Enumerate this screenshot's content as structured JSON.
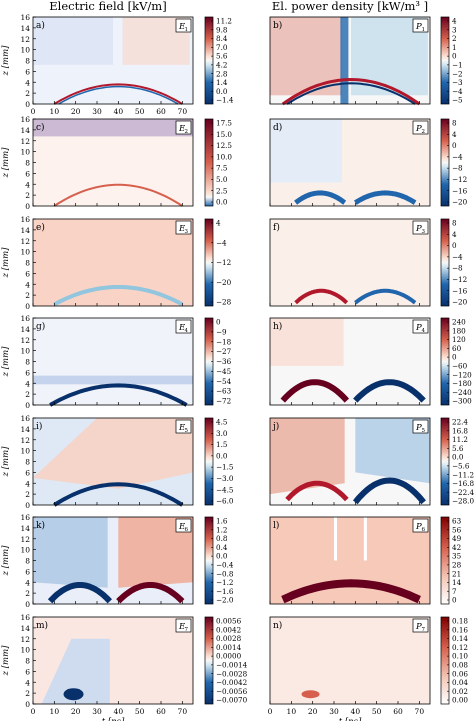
{
  "column_titles": {
    "left": "Electric field [kV/m]",
    "right": "El. power density [kW/m³ ]"
  },
  "colors": {
    "neg_dark": "#08306b",
    "neg_mid": "#2166ac",
    "neg_light": "#92c5de",
    "zero": "#f7f7f7",
    "pos_light": "#f4a582",
    "pos_mid": "#d6604d",
    "pos_dark": "#67001f",
    "seq_light": "#ffffff",
    "seq_mid": "#e0a090",
    "seq_dark": "#7f0000"
  },
  "chart_data": [
    {
      "type": "heatmap",
      "panel_label": "a)",
      "tag": "E1",
      "ylabel": "z [mm]",
      "ylim": [
        0,
        16
      ],
      "xlim": [
        0,
        75
      ],
      "x_ticks": [
        "0",
        "10",
        "20",
        "30",
        "40",
        "50",
        "60",
        "70"
      ],
      "y_ticks": [
        "0",
        "2",
        "4",
        "6",
        "8",
        "10",
        "12",
        "14",
        "16"
      ],
      "colorbar_ticks": [
        "11.2",
        "9.8",
        "8.4",
        "7.0",
        "5.6",
        "4.2",
        "2.8",
        "1.4",
        "0.0",
        "−1.4"
      ],
      "colormap": "diverging"
    },
    {
      "type": "heatmap",
      "panel_label": "b)",
      "tag": "P1",
      "xlim": [
        0,
        75
      ],
      "ylim": [
        0,
        16
      ],
      "colorbar_ticks": [
        "4",
        "3",
        "2",
        "1",
        "0",
        "−1",
        "−2",
        "−3",
        "−4",
        "−5"
      ],
      "colormap": "diverging"
    },
    {
      "type": "heatmap",
      "panel_label": "c)",
      "tag": "E2",
      "ylabel": "z [mm]",
      "ylim": [
        0,
        16
      ],
      "xlim": [
        0,
        75
      ],
      "y_ticks": [
        "0",
        "2",
        "4",
        "6",
        "8",
        "10",
        "12",
        "14",
        "16"
      ],
      "colorbar_ticks": [
        "17.5",
        "15.0",
        "12.5",
        "10.0",
        "7.5",
        "5.0",
        "2.5",
        "0.0"
      ],
      "colormap": "sequential"
    },
    {
      "type": "heatmap",
      "panel_label": "d)",
      "tag": "P2",
      "xlim": [
        0,
        75
      ],
      "ylim": [
        0,
        16
      ],
      "colorbar_ticks": [
        "8",
        "4",
        "0",
        "−4",
        "−8",
        "−12",
        "−16",
        "−20"
      ],
      "colormap": "diverging"
    },
    {
      "type": "heatmap",
      "panel_label": "e)",
      "tag": "E3",
      "ylabel": "z [mm]",
      "ylim": [
        0,
        16
      ],
      "xlim": [
        0,
        75
      ],
      "y_ticks": [
        "0",
        "2",
        "4",
        "6",
        "8",
        "10",
        "12",
        "14",
        "16"
      ],
      "colorbar_ticks": [
        "4",
        "−4",
        "−12",
        "−20",
        "−28"
      ],
      "colorbar_minor_ticks": [
        "0",
        "−8",
        "−16",
        "−24"
      ],
      "colormap": "diverging"
    },
    {
      "type": "heatmap",
      "panel_label": "f)",
      "tag": "P3",
      "xlim": [
        0,
        75
      ],
      "ylim": [
        0,
        16
      ],
      "colorbar_ticks": [
        "8",
        "4",
        "0",
        "−4",
        "−8",
        "−12",
        "−16",
        "−20"
      ],
      "colormap": "diverging"
    },
    {
      "type": "heatmap",
      "panel_label": "g)",
      "tag": "E4",
      "ylabel": "z [mm]",
      "ylim": [
        0,
        16
      ],
      "xlim": [
        0,
        75
      ],
      "y_ticks": [
        "0",
        "2",
        "4",
        "6",
        "8",
        "10",
        "12",
        "14",
        "16"
      ],
      "colorbar_ticks": [
        "0",
        "−9",
        "−18",
        "−27",
        "−36",
        "−45",
        "−54",
        "−63",
        "−72"
      ],
      "colormap": "diverging"
    },
    {
      "type": "heatmap",
      "panel_label": "h)",
      "tag": "P4",
      "xlim": [
        0,
        75
      ],
      "ylim": [
        0,
        16
      ],
      "colorbar_ticks": [
        "240",
        "180",
        "120",
        "60",
        "0",
        "−60",
        "−120",
        "−180",
        "−240",
        "−300"
      ],
      "colormap": "diverging"
    },
    {
      "type": "heatmap",
      "panel_label": "i)",
      "tag": "E5",
      "ylabel": "z [mm]",
      "ylim": [
        0,
        16
      ],
      "xlim": [
        0,
        75
      ],
      "y_ticks": [
        "0",
        "2",
        "4",
        "6",
        "8",
        "10",
        "12",
        "14",
        "16"
      ],
      "colorbar_ticks": [
        "4.5",
        "3.0",
        "1.5",
        "0.0",
        "−1.5",
        "−3.0",
        "−4.5",
        "−6.0"
      ],
      "colormap": "diverging"
    },
    {
      "type": "heatmap",
      "panel_label": "j)",
      "tag": "P5",
      "xlim": [
        0,
        75
      ],
      "ylim": [
        0,
        16
      ],
      "colorbar_ticks": [
        "22.4",
        "16.8",
        "11.2",
        "5.6",
        "0.0",
        "−5.6",
        "−11.2",
        "−16.8",
        "−22.4",
        "−28.0"
      ],
      "colormap": "diverging"
    },
    {
      "type": "heatmap",
      "panel_label": "k)",
      "tag": "E6",
      "ylabel": "z [mm]",
      "ylim": [
        0,
        16
      ],
      "xlim": [
        0,
        75
      ],
      "y_ticks": [
        "0",
        "2",
        "4",
        "6",
        "8",
        "10",
        "12",
        "14",
        "16"
      ],
      "colorbar_ticks": [
        "1.6",
        "1.2",
        "0.8",
        "0.4",
        "0.0",
        "−0.4",
        "−0.8",
        "−1.2",
        "−1.6",
        "−2.0"
      ],
      "colormap": "diverging"
    },
    {
      "type": "heatmap",
      "panel_label": "l)",
      "tag": "P6",
      "xlim": [
        0,
        75
      ],
      "ylim": [
        0,
        16
      ],
      "colorbar_ticks": [
        "63",
        "56",
        "49",
        "42",
        "35",
        "28",
        "21",
        "14",
        "7",
        "0"
      ],
      "colormap": "sequential"
    },
    {
      "type": "heatmap",
      "panel_label": "m)",
      "tag": "E7",
      "xlabel": "t [ns]",
      "ylabel": "z [mm]",
      "ylim": [
        0,
        16
      ],
      "xlim": [
        0,
        75
      ],
      "x_ticks": [
        "0",
        "10",
        "20",
        "30",
        "40",
        "50",
        "60",
        "70"
      ],
      "y_ticks": [
        "0",
        "2",
        "4",
        "6",
        "8",
        "10",
        "12",
        "14",
        "16"
      ],
      "colorbar_ticks": [
        "0.0056",
        "0.0042",
        "0.0028",
        "0.0014",
        "0.0000",
        "−0.0014",
        "−0.0028",
        "−0.0042",
        "−0.0056",
        "−0.0070"
      ],
      "colormap": "diverging"
    },
    {
      "type": "heatmap",
      "panel_label": "n)",
      "tag": "P7",
      "xlabel": "t [ns]",
      "xlim": [
        0,
        75
      ],
      "ylim": [
        0,
        16
      ],
      "x_ticks": [
        "0",
        "10",
        "20",
        "30",
        "40",
        "50",
        "60",
        "70"
      ],
      "colorbar_ticks": [
        "0.18",
        "0.16",
        "0.14",
        "0.12",
        "0.10",
        "0.08",
        "0.06",
        "0.04",
        "0.02",
        "0.00"
      ],
      "colormap": "sequential"
    }
  ]
}
